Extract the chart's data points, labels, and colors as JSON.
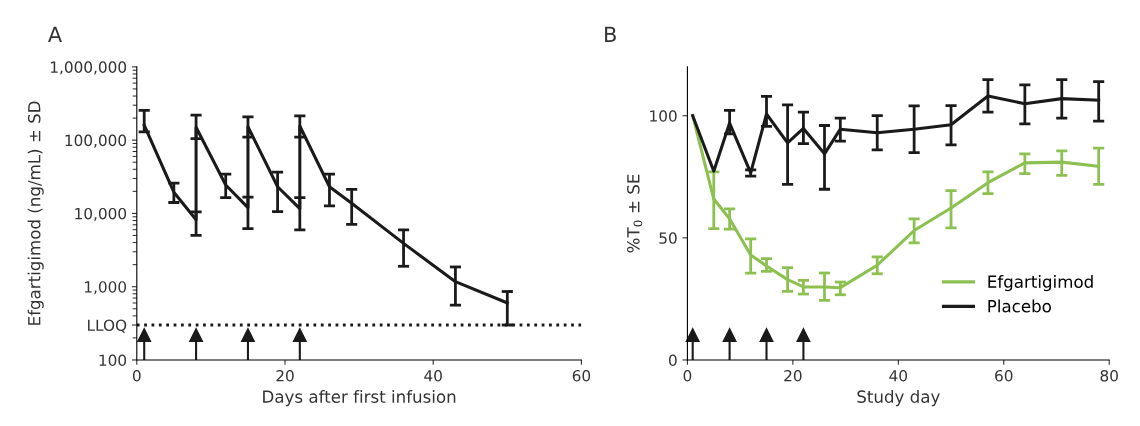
{
  "chart_data": [
    {
      "type": "line",
      "title": "A",
      "xlabel": "Days after first infusion",
      "ylabel": "Efgartigimod (ng/mL) ± SD",
      "log": "y",
      "xlim": [
        0,
        60
      ],
      "xticks": [
        0,
        20,
        40,
        60
      ],
      "ylim": [
        100,
        1000000
      ],
      "yticks": [
        {
          "value": 100,
          "label": "100"
        },
        {
          "value": 300,
          "label": "LLOQ"
        },
        {
          "value": 1000,
          "label": "1,000"
        },
        {
          "value": 10000,
          "label": "10,000"
        },
        {
          "value": 100000,
          "label": "100,000"
        },
        {
          "value": 1000000,
          "label": "1,000,000"
        }
      ],
      "ref_lines": [
        {
          "axis": "y",
          "value": 300,
          "label": null,
          "color": "#1a1a1a",
          "line_style": "dotted"
        },
        {
          "axis": "x",
          "value": 1,
          "label": null,
          "color": "#1a1a1a"
        },
        {
          "axis": "x",
          "value": 8,
          "label": null,
          "color": "#1a1a1a"
        },
        {
          "axis": "x",
          "value": 15,
          "label": null,
          "color": "#1a1a1a"
        },
        {
          "axis": "x",
          "value": 22,
          "label": null,
          "color": "#1a1a1a"
        }
      ],
      "grid": false,
      "legend": false,
      "marker": "none",
      "line_style": "solid",
      "series": [
        {
          "color": "#1a1a1a",
          "x": [
            1,
            5,
            8,
            8,
            12,
            15,
            15,
            19,
            22,
            22,
            26,
            29,
            36,
            43,
            50
          ],
          "values": [
            160000,
            19500,
            8200,
            150000,
            24400,
            12000,
            153000,
            23100,
            11600,
            156000,
            23100,
            13800,
            3900,
            1170,
            600
          ],
          "errors": [
            [
              130000,
              255000
            ],
            [
              14100,
              25900
            ],
            [
              5000,
              10500
            ],
            [
              105000,
              220000
            ],
            [
              16400,
              34400
            ],
            [
              6200,
              16700
            ],
            [
              110000,
              208000
            ],
            [
              10600,
              36500
            ],
            [
              5970,
              16400
            ],
            [
              110000,
              215000
            ],
            [
              12700,
              34400
            ],
            [
              7100,
              21300
            ],
            [
              1900,
              5970
            ],
            [
              560,
              1860
            ],
            [
              300,
              860
            ]
          ]
        }
      ]
    },
    {
      "type": "line",
      "title": "B",
      "xlabel": "Study day",
      "ylabel": "%T$_{0}$ ± SE",
      "xlim": [
        0,
        80
      ],
      "xticks": [
        0,
        20,
        40,
        60,
        80
      ],
      "ylim": [
        0,
        120
      ],
      "yticks": [
        0,
        50,
        100
      ],
      "ref_lines": [
        {
          "axis": "x",
          "value": 1,
          "label": null,
          "color": "#1a1a1a"
        },
        {
          "axis": "x",
          "value": 8,
          "label": null,
          "color": "#1a1a1a"
        },
        {
          "axis": "x",
          "value": 15,
          "label": null,
          "color": "#1a1a1a"
        },
        {
          "axis": "x",
          "value": 22,
          "label": null,
          "color": "#1a1a1a"
        }
      ],
      "grid": false,
      "legend": "bottom right",
      "marker": "none",
      "line_style": "solid",
      "series": [
        {
          "name": "Efgartigimod",
          "color": "#8cc152",
          "x": [
            1,
            5,
            8,
            12,
            15,
            19,
            22,
            26,
            29,
            36,
            43,
            50,
            57,
            64,
            71,
            78
          ],
          "values": [
            100,
            65.9,
            57.8,
            43,
            38.5,
            32.9,
            29.9,
            29.9,
            29.6,
            38.8,
            53,
            62.2,
            72.6,
            80.7,
            81,
            79.3
          ],
          "errors": [
            null,
            [
              53.8,
              77
            ],
            [
              53.6,
              61.9
            ],
            [
              35.6,
              49.6
            ],
            [
              36.3,
              41.5
            ],
            [
              28.1,
              37.8
            ],
            [
              27,
              32.6
            ],
            [
              24.4,
              35.6
            ],
            [
              26.7,
              31.9
            ],
            [
              35.3,
              42.2
            ],
            [
              47.9,
              57.8
            ],
            [
              54.1,
              69.3
            ],
            [
              68.1,
              77
            ],
            [
              76.3,
              84.4
            ],
            [
              75.6,
              85.6
            ],
            [
              71.9,
              86.7
            ]
          ]
        },
        {
          "name": "Placebo",
          "color": "#1a1a1a",
          "x": [
            1,
            5,
            8,
            12,
            15,
            19,
            22,
            26,
            29,
            36,
            43,
            50,
            57,
            64,
            71,
            78
          ],
          "values": [
            100,
            77.3,
            97,
            76.6,
            100.7,
            88.9,
            94.8,
            84.4,
            94.5,
            93,
            94.5,
            96.3,
            108.1,
            104.9,
            107,
            106.4
          ],
          "errors": [
            null,
            null,
            [
              92.6,
              102.2
            ],
            [
              75.3,
              77.8
            ],
            [
              95.6,
              107.9
            ],
            [
              71.9,
              104.4
            ],
            [
              88.6,
              101.5
            ],
            [
              69.9,
              96
            ],
            [
              89.6,
              99
            ],
            [
              86,
              100
            ],
            [
              84.9,
              104
            ],
            [
              88.1,
              104.1
            ],
            [
              101.5,
              114.8
            ],
            [
              96.7,
              112.6
            ],
            [
              99,
              114.8
            ],
            [
              97.8,
              114
            ]
          ]
        }
      ]
    }
  ]
}
